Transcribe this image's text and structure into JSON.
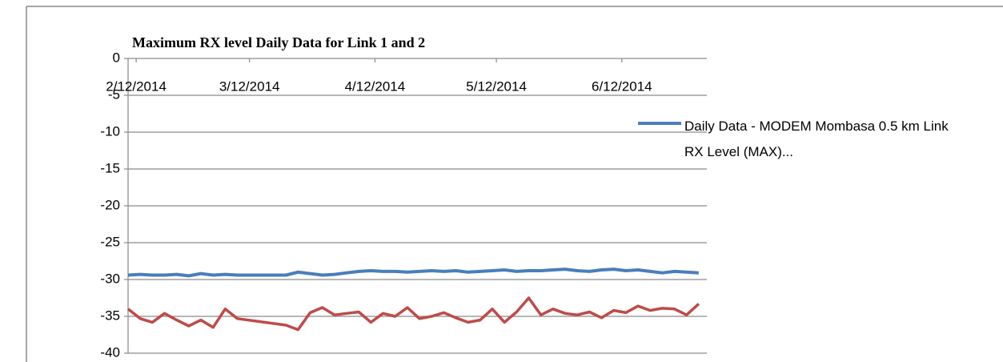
{
  "chart_data": {
    "type": "line",
    "title": "Maximum  RX level Daily Data for Link 1 and 2",
    "x": [
      "2014-02-10",
      "2014-02-13",
      "2014-02-16",
      "2014-02-19",
      "2014-02-22",
      "2014-02-25",
      "2014-02-28",
      "2014-03-03",
      "2014-03-06",
      "2014-03-09",
      "2014-03-21",
      "2014-03-24",
      "2014-03-27",
      "2014-03-30",
      "2014-04-02",
      "2014-04-05",
      "2014-04-08",
      "2014-04-11",
      "2014-04-14",
      "2014-04-17",
      "2014-04-20",
      "2014-04-23",
      "2014-04-26",
      "2014-04-29",
      "2014-05-02",
      "2014-05-05",
      "2014-05-08",
      "2014-05-11",
      "2014-05-14",
      "2014-05-17",
      "2014-05-20",
      "2014-05-23",
      "2014-05-26",
      "2014-05-29",
      "2014-06-01",
      "2014-06-04",
      "2014-06-07",
      "2014-06-10",
      "2014-06-13",
      "2014-06-16",
      "2014-06-19",
      "2014-06-22",
      "2014-06-25",
      "2014-06-28",
      "2014-07-01"
    ],
    "series": [
      {
        "name": "Daily Data - MODEM Mombasa 0.5 km Link RX Level (MAX)...",
        "color": "#4a7ebb",
        "values": [
          -29.4,
          -29.3,
          -29.4,
          -29.4,
          -29.3,
          -29.5,
          -29.2,
          -29.4,
          -29.3,
          -29.4,
          -29.4,
          -29.0,
          -29.2,
          -29.4,
          -29.3,
          -29.1,
          -28.9,
          -28.8,
          -28.9,
          -28.9,
          -29.0,
          -28.9,
          -28.8,
          -28.9,
          -28.8,
          -29.0,
          -28.9,
          -28.8,
          -28.7,
          -28.9,
          -28.8,
          -28.8,
          -28.7,
          -28.6,
          -28.8,
          -28.9,
          -28.7,
          -28.6,
          -28.8,
          -28.7,
          -28.9,
          -29.1,
          -28.9,
          -29.0,
          -29.1
        ]
      },
      {
        "color": "#be4b48",
        "values": [
          -34,
          -35.3,
          -35.8,
          -34.6,
          -35.5,
          -36.3,
          -35.5,
          -36.5,
          -34,
          -35.3,
          -36.2,
          -36.8,
          -34.5,
          -33.8,
          -34.8,
          -34.6,
          -34.4,
          -35.8,
          -34.6,
          -35,
          -33.8,
          -35.3,
          -35,
          -34.5,
          -35.2,
          -35.8,
          -35.5,
          -34,
          -35.8,
          -34.4,
          -32.5,
          -34.8,
          -34,
          -34.6,
          -34.8,
          -34.4,
          -35.2,
          -34.2,
          -34.5,
          -33.6,
          -34.2,
          -33.9,
          -34,
          -34.8,
          -33.3
        ]
      }
    ],
    "xlim": [
      "2014-02-10",
      "2014-07-03"
    ],
    "xticks": [
      {
        "value": "2014-02-12",
        "label": "2/12/2014"
      },
      {
        "value": "2014-03-12",
        "label": "3/12/2014"
      },
      {
        "value": "2014-04-12",
        "label": "4/12/2014"
      },
      {
        "value": "2014-05-12",
        "label": "5/12/2014"
      },
      {
        "value": "2014-06-12",
        "label": "6/12/2014"
      }
    ],
    "ylim": [
      -40,
      0
    ],
    "yticks": [
      0,
      -5,
      -10,
      -15,
      -20,
      -25,
      -30,
      -35,
      -40
    ],
    "grid": true,
    "legend": "right"
  }
}
